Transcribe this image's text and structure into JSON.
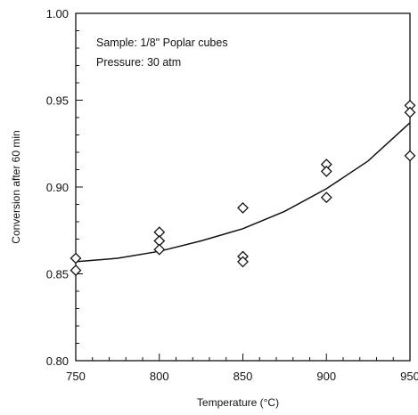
{
  "chart_data": {
    "type": "scatter",
    "xlabel": "Temperature (°C)",
    "ylabel": "Conversion after 60 min",
    "xlim": [
      750,
      950
    ],
    "ylim": [
      0.8,
      1.0
    ],
    "x_ticks": [
      750,
      800,
      850,
      900,
      950
    ],
    "y_ticks": [
      "0.80",
      "0.85",
      "0.90",
      "0.95",
      "1.00"
    ],
    "annotations": [
      "Sample: 1/8\" Poplar cubes",
      "Pressure: 30 atm"
    ],
    "grid": false,
    "series": [
      {
        "marker": "diamond",
        "points": [
          {
            "x": 750,
            "y": 0.859
          },
          {
            "x": 750,
            "y": 0.852
          },
          {
            "x": 800,
            "y": 0.874
          },
          {
            "x": 800,
            "y": 0.869
          },
          {
            "x": 800,
            "y": 0.864
          },
          {
            "x": 850,
            "y": 0.888
          },
          {
            "x": 850,
            "y": 0.86
          },
          {
            "x": 850,
            "y": 0.857
          },
          {
            "x": 900,
            "y": 0.913
          },
          {
            "x": 900,
            "y": 0.909
          },
          {
            "x": 900,
            "y": 0.894
          },
          {
            "x": 950,
            "y": 0.947
          },
          {
            "x": 950,
            "y": 0.943
          },
          {
            "x": 950,
            "y": 0.918
          }
        ]
      },
      {
        "style": "line",
        "points": [
          {
            "x": 750,
            "y": 0.857
          },
          {
            "x": 775,
            "y": 0.859
          },
          {
            "x": 800,
            "y": 0.863
          },
          {
            "x": 825,
            "y": 0.869
          },
          {
            "x": 850,
            "y": 0.876
          },
          {
            "x": 875,
            "y": 0.886
          },
          {
            "x": 900,
            "y": 0.899
          },
          {
            "x": 925,
            "y": 0.915
          },
          {
            "x": 950,
            "y": 0.937
          }
        ]
      }
    ]
  }
}
